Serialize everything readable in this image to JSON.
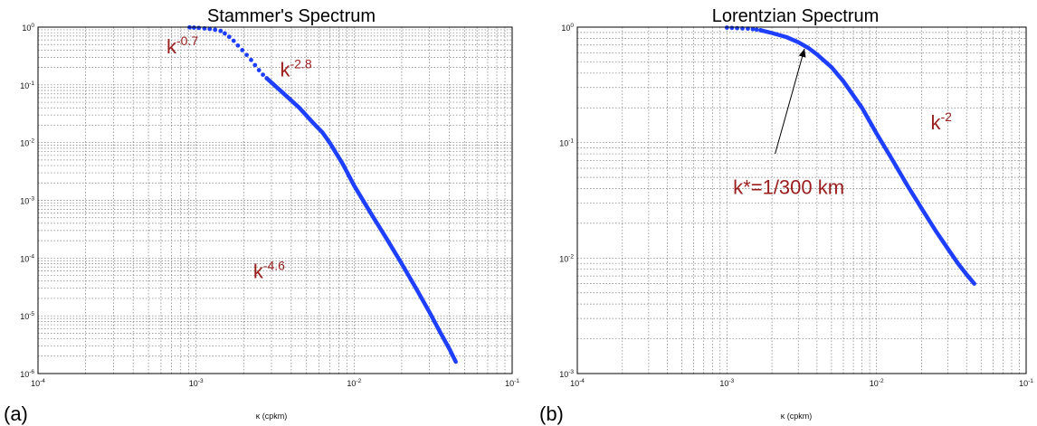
{
  "panels": [
    {
      "label": "(a)",
      "chart_data": {
        "type": "line",
        "title": "Stammer's Spectrum",
        "xlabel": "κ (cpkm)",
        "ylabel": "",
        "xscale": "log",
        "yscale": "log",
        "xlim": [
          0.0001,
          0.1
        ],
        "ylim": [
          1e-06,
          1
        ],
        "grid": true,
        "x_ticks": [
          {
            "base": "10",
            "exp": "-4",
            "value": 0.0001
          },
          {
            "base": "10",
            "exp": "-3",
            "value": 0.001
          },
          {
            "base": "10",
            "exp": "-2",
            "value": 0.01
          },
          {
            "base": "10",
            "exp": "-1",
            "value": 0.1
          }
        ],
        "y_ticks": [
          {
            "base": "10",
            "exp": "0",
            "value": 1
          },
          {
            "base": "10",
            "exp": "-1",
            "value": 0.1
          },
          {
            "base": "10",
            "exp": "-2",
            "value": 0.01
          },
          {
            "base": "10",
            "exp": "-3",
            "value": 0.001
          },
          {
            "base": "10",
            "exp": "-4",
            "value": 0.0001
          },
          {
            "base": "10",
            "exp": "-5",
            "value": 1e-05
          },
          {
            "base": "10",
            "exp": "-6",
            "value": 1e-06
          }
        ],
        "dotted_points": {
          "x": [
            0.00091,
            0.00097,
            0.00104,
            0.00113,
            0.00122,
            0.00132,
            0.00143,
            0.00152,
            0.00162,
            0.00173,
            0.00184,
            0.00196,
            0.00209,
            0.00223,
            0.00236,
            0.0025,
            0.00265,
            0.0028
          ],
          "y": [
            0.99,
            0.98,
            0.97,
            0.95,
            0.93,
            0.9,
            0.86,
            0.78,
            0.68,
            0.58,
            0.48,
            0.4,
            0.33,
            0.27,
            0.22,
            0.18,
            0.15,
            0.13
          ]
        },
        "series": [
          {
            "x": [
              0.0028,
              0.0035,
              0.0045,
              0.0055,
              0.0063,
              0.007,
              0.0085,
              0.01,
              0.013,
              0.016,
              0.02,
              0.025,
              0.03,
              0.035,
              0.04,
              0.044
            ],
            "y": [
              0.13,
              0.075,
              0.04,
              0.022,
              0.015,
              0.01,
              0.0042,
              0.0018,
              0.00055,
              0.00022,
              8e-05,
              2.8e-05,
              1.15e-05,
              5.2e-06,
              2.7e-06,
              1.6e-06
            ]
          }
        ],
        "annotations": [
          {
            "base": "k",
            "exp": "-0.7",
            "x": 0.00065,
            "y": 0.35
          },
          {
            "base": "k",
            "exp": "-2.8",
            "x": 0.0034,
            "y": 0.14
          },
          {
            "base": "k",
            "exp": "-4.6",
            "x": 0.0023,
            "y": 4.5e-05
          }
        ],
        "colors": {
          "line": "#1f3fff",
          "annotation": "#9a1d1d"
        }
      }
    },
    {
      "label": "(b)",
      "chart_data": {
        "type": "line",
        "title": "Lorentzian Spectrum",
        "xlabel": "κ (cpkm)",
        "ylabel": "",
        "xscale": "log",
        "yscale": "log",
        "xlim": [
          0.0001,
          0.1
        ],
        "ylim": [
          0.001,
          1
        ],
        "grid": true,
        "x_ticks": [
          {
            "base": "10",
            "exp": "-4",
            "value": 0.0001
          },
          {
            "base": "10",
            "exp": "-3",
            "value": 0.001
          },
          {
            "base": "10",
            "exp": "-2",
            "value": 0.01
          },
          {
            "base": "10",
            "exp": "-1",
            "value": 0.1
          }
        ],
        "y_ticks": [
          {
            "base": "10",
            "exp": "0",
            "value": 1
          },
          {
            "base": "10",
            "exp": "-1",
            "value": 0.1
          },
          {
            "base": "10",
            "exp": "-2",
            "value": 0.01
          },
          {
            "base": "10",
            "exp": "-3",
            "value": 0.001
          }
        ],
        "dotted_points": {
          "x": [
            0.001,
            0.00108,
            0.00117,
            0.00127,
            0.00138,
            0.00149,
            0.00158,
            0.00168
          ],
          "y": [
            0.99,
            0.985,
            0.98,
            0.975,
            0.97,
            0.96,
            0.95,
            0.94
          ]
        },
        "series": [
          {
            "x": [
              0.00168,
              0.002,
              0.0025,
              0.003,
              0.0035,
              0.004,
              0.005,
              0.006,
              0.008,
              0.01,
              0.013,
              0.016,
              0.02,
              0.025,
              0.03,
              0.035,
              0.04,
              0.045
            ],
            "y": [
              0.94,
              0.89,
              0.82,
              0.74,
              0.66,
              0.58,
              0.45,
              0.34,
              0.2,
              0.12,
              0.068,
              0.043,
              0.027,
              0.017,
              0.012,
              0.009,
              0.0072,
              0.006
            ]
          }
        ],
        "annotations": [
          {
            "base": "k",
            "exp": "-2",
            "x": 0.023,
            "y": 0.13
          },
          {
            "base": "k*=1/300 km",
            "exp": "",
            "x": 0.0011,
            "y": 0.036
          }
        ],
        "arrow": {
          "from": [
            0.0021,
            0.08
          ],
          "to": [
            0.0033,
            0.65
          ]
        },
        "colors": {
          "line": "#1f3fff",
          "annotation": "#9a1d1d"
        }
      }
    }
  ]
}
